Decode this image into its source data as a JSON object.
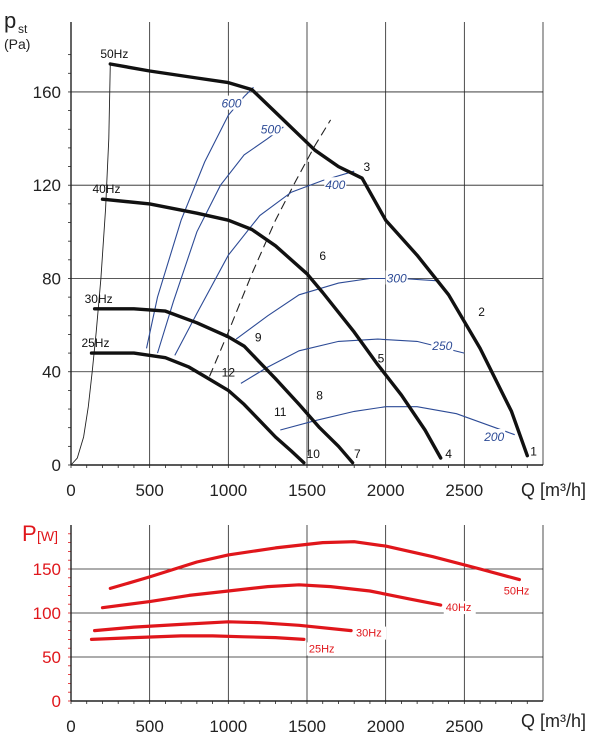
{
  "chart_data": [
    {
      "type": "line",
      "title": "",
      "ylabel_main": "p",
      "ylabel_sub": "st",
      "ylabel_unit": "(Pa)",
      "xlabel": "Q [m³/h]",
      "xlim": [
        0,
        3000
      ],
      "ylim": [
        0,
        190
      ],
      "xticks": [
        0,
        500,
        1000,
        1500,
        2000,
        2500
      ],
      "yticks": [
        0,
        40,
        80,
        120,
        160
      ],
      "frequency_curves": [
        {
          "name": "50Hz",
          "label": "50Hz",
          "points": [
            [
              250,
              172
            ],
            [
              500,
              169
            ],
            [
              800,
              166
            ],
            [
              1000,
              164
            ],
            [
              1150,
              161
            ],
            [
              1350,
              148
            ],
            [
              1550,
              135
            ],
            [
              1700,
              128
            ],
            [
              1850,
              123
            ],
            [
              2000,
              105
            ],
            [
              2200,
              90
            ],
            [
              2400,
              73
            ],
            [
              2600,
              50
            ],
            [
              2800,
              23
            ],
            [
              2900,
              4
            ]
          ]
        },
        {
          "name": "40Hz",
          "label": "40Hz",
          "points": [
            [
              200,
              114
            ],
            [
              500,
              112
            ],
            [
              800,
              108
            ],
            [
              1000,
              105
            ],
            [
              1150,
              101
            ],
            [
              1300,
              94
            ],
            [
              1500,
              82
            ],
            [
              1600,
              74
            ],
            [
              1800,
              57
            ],
            [
              1950,
              43
            ],
            [
              2100,
              30
            ],
            [
              2250,
              15
            ],
            [
              2350,
              3
            ]
          ]
        },
        {
          "name": "30Hz",
          "label": "30Hz",
          "points": [
            [
              150,
              67
            ],
            [
              400,
              67
            ],
            [
              600,
              66
            ],
            [
              800,
              61
            ],
            [
              1000,
              55
            ],
            [
              1100,
              51
            ],
            [
              1200,
              44
            ],
            [
              1300,
              37
            ],
            [
              1450,
              26
            ],
            [
              1580,
              16
            ],
            [
              1700,
              8
            ],
            [
              1790,
              1
            ]
          ]
        },
        {
          "name": "25Hz",
          "label": "25Hz",
          "points": [
            [
              130,
              48
            ],
            [
              400,
              48
            ],
            [
              600,
              46
            ],
            [
              750,
              42
            ],
            [
              850,
              38
            ],
            [
              1000,
              32
            ],
            [
              1100,
              26
            ],
            [
              1200,
              19
            ],
            [
              1300,
              12
            ],
            [
              1400,
              6
            ],
            [
              1480,
              1
            ]
          ]
        }
      ],
      "rpm_curves": [
        {
          "label": "600",
          "label_at": [
            1020,
            155
          ],
          "points": [
            [
              480,
              50
            ],
            [
              550,
              72
            ],
            [
              700,
              105
            ],
            [
              850,
              130
            ],
            [
              1000,
              150
            ],
            [
              1100,
              158
            ],
            [
              1160,
              162
            ]
          ]
        },
        {
          "label": "500",
          "label_at": [
            1270,
            144
          ],
          "points": [
            [
              550,
              48
            ],
            [
              650,
              70
            ],
            [
              800,
              100
            ],
            [
              950,
              120
            ],
            [
              1100,
              133
            ],
            [
              1250,
              140
            ],
            [
              1350,
              145
            ]
          ]
        },
        {
          "label": "400",
          "label_at": [
            1680,
            120
          ],
          "points": [
            [
              660,
              47
            ],
            [
              800,
              65
            ],
            [
              1000,
              90
            ],
            [
              1200,
              107
            ],
            [
              1400,
              117
            ],
            [
              1600,
              122
            ],
            [
              1800,
              126
            ]
          ]
        },
        {
          "label": "300",
          "label_at": [
            2070,
            80
          ],
          "points": [
            [
              1050,
              54
            ],
            [
              1250,
              64
            ],
            [
              1450,
              73
            ],
            [
              1700,
              78
            ],
            [
              1900,
              80
            ],
            [
              2100,
              80
            ],
            [
              2330,
              79
            ]
          ]
        },
        {
          "label": "250",
          "label_at": [
            2360,
            51
          ],
          "points": [
            [
              1080,
              35
            ],
            [
              1250,
              42
            ],
            [
              1450,
              49
            ],
            [
              1700,
              53
            ],
            [
              1950,
              54
            ],
            [
              2200,
              53
            ],
            [
              2500,
              48
            ]
          ]
        },
        {
          "label": "200",
          "label_at": [
            2690,
            12
          ],
          "points": [
            [
              1330,
              15
            ],
            [
              1550,
              19
            ],
            [
              1800,
              23
            ],
            [
              2000,
              25
            ],
            [
              2200,
              25
            ],
            [
              2450,
              22
            ],
            [
              2820,
              13
            ]
          ]
        }
      ],
      "system_curves": [
        {
          "style": "thin",
          "points": [
            [
              0,
              0
            ],
            [
              40,
              3
            ],
            [
              80,
              12
            ],
            [
              110,
              25
            ],
            [
              135,
              40
            ],
            [
              160,
              57
            ],
            [
              190,
              80
            ],
            [
              220,
              110
            ],
            [
              240,
              140
            ],
            [
              250,
              172
            ]
          ]
        },
        {
          "style": "dashed",
          "points": [
            [
              880,
              38
            ],
            [
              1000,
              57
            ],
            [
              1150,
              82
            ],
            [
              1300,
              105
            ],
            [
              1430,
              122
            ],
            [
              1550,
              137
            ],
            [
              1650,
              148
            ]
          ]
        },
        {
          "style": "thin",
          "points": [
            [
              1510,
              4
            ],
            [
              1510,
              130
            ]
          ]
        }
      ],
      "point_labels": [
        {
          "label": "1",
          "at": [
            2940,
            4
          ]
        },
        {
          "label": "2",
          "at": [
            2610,
            64
          ]
        },
        {
          "label": "3",
          "at": [
            1880,
            126
          ]
        },
        {
          "label": "4",
          "at": [
            2400,
            3
          ]
        },
        {
          "label": "5",
          "at": [
            1970,
            44
          ]
        },
        {
          "label": "6",
          "at": [
            1600,
            88
          ]
        },
        {
          "label": "7",
          "at": [
            1820,
            3
          ]
        },
        {
          "label": "8",
          "at": [
            1580,
            28
          ]
        },
        {
          "label": "9",
          "at": [
            1190,
            53
          ]
        },
        {
          "label": "10",
          "at": [
            1540,
            3
          ]
        },
        {
          "label": "11",
          "at": [
            1330,
            21
          ]
        },
        {
          "label": "12",
          "at": [
            1000,
            38
          ]
        }
      ]
    },
    {
      "type": "line",
      "title": "",
      "ylabel": "P[W]",
      "ylabel_main": "P",
      "ylabel_unit": "[W]",
      "xlabel": "Q [m³/h]",
      "xlim": [
        0,
        3000
      ],
      "ylim": [
        0,
        200
      ],
      "xticks": [
        0,
        500,
        1000,
        1500,
        2000,
        2500
      ],
      "yticks": [
        0,
        50,
        100,
        150
      ],
      "series": [
        {
          "name": "50Hz",
          "label": "50Hz",
          "points": [
            [
              250,
              128
            ],
            [
              500,
              141
            ],
            [
              800,
              158
            ],
            [
              1000,
              166
            ],
            [
              1300,
              174
            ],
            [
              1600,
              180
            ],
            [
              1800,
              181
            ],
            [
              2000,
              176
            ],
            [
              2300,
              164
            ],
            [
              2600,
              150
            ],
            [
              2850,
              138
            ]
          ]
        },
        {
          "name": "40Hz",
          "label": "40Hz",
          "points": [
            [
              200,
              106
            ],
            [
              500,
              113
            ],
            [
              750,
              120
            ],
            [
              1000,
              125
            ],
            [
              1250,
              130
            ],
            [
              1450,
              132
            ],
            [
              1650,
              130
            ],
            [
              1900,
              125
            ],
            [
              2150,
              116
            ],
            [
              2350,
              109
            ]
          ]
        },
        {
          "name": "30Hz",
          "label": "30Hz",
          "points": [
            [
              150,
              80
            ],
            [
              400,
              84
            ],
            [
              700,
              87
            ],
            [
              1000,
              90
            ],
            [
              1200,
              89
            ],
            [
              1450,
              86
            ],
            [
              1780,
              80
            ]
          ]
        },
        {
          "name": "25Hz",
          "label": "25Hz",
          "points": [
            [
              130,
              70
            ],
            [
              400,
              72
            ],
            [
              700,
              74
            ],
            [
              900,
              74
            ],
            [
              1100,
              73
            ],
            [
              1300,
              72
            ],
            [
              1480,
              70
            ]
          ]
        }
      ]
    }
  ]
}
